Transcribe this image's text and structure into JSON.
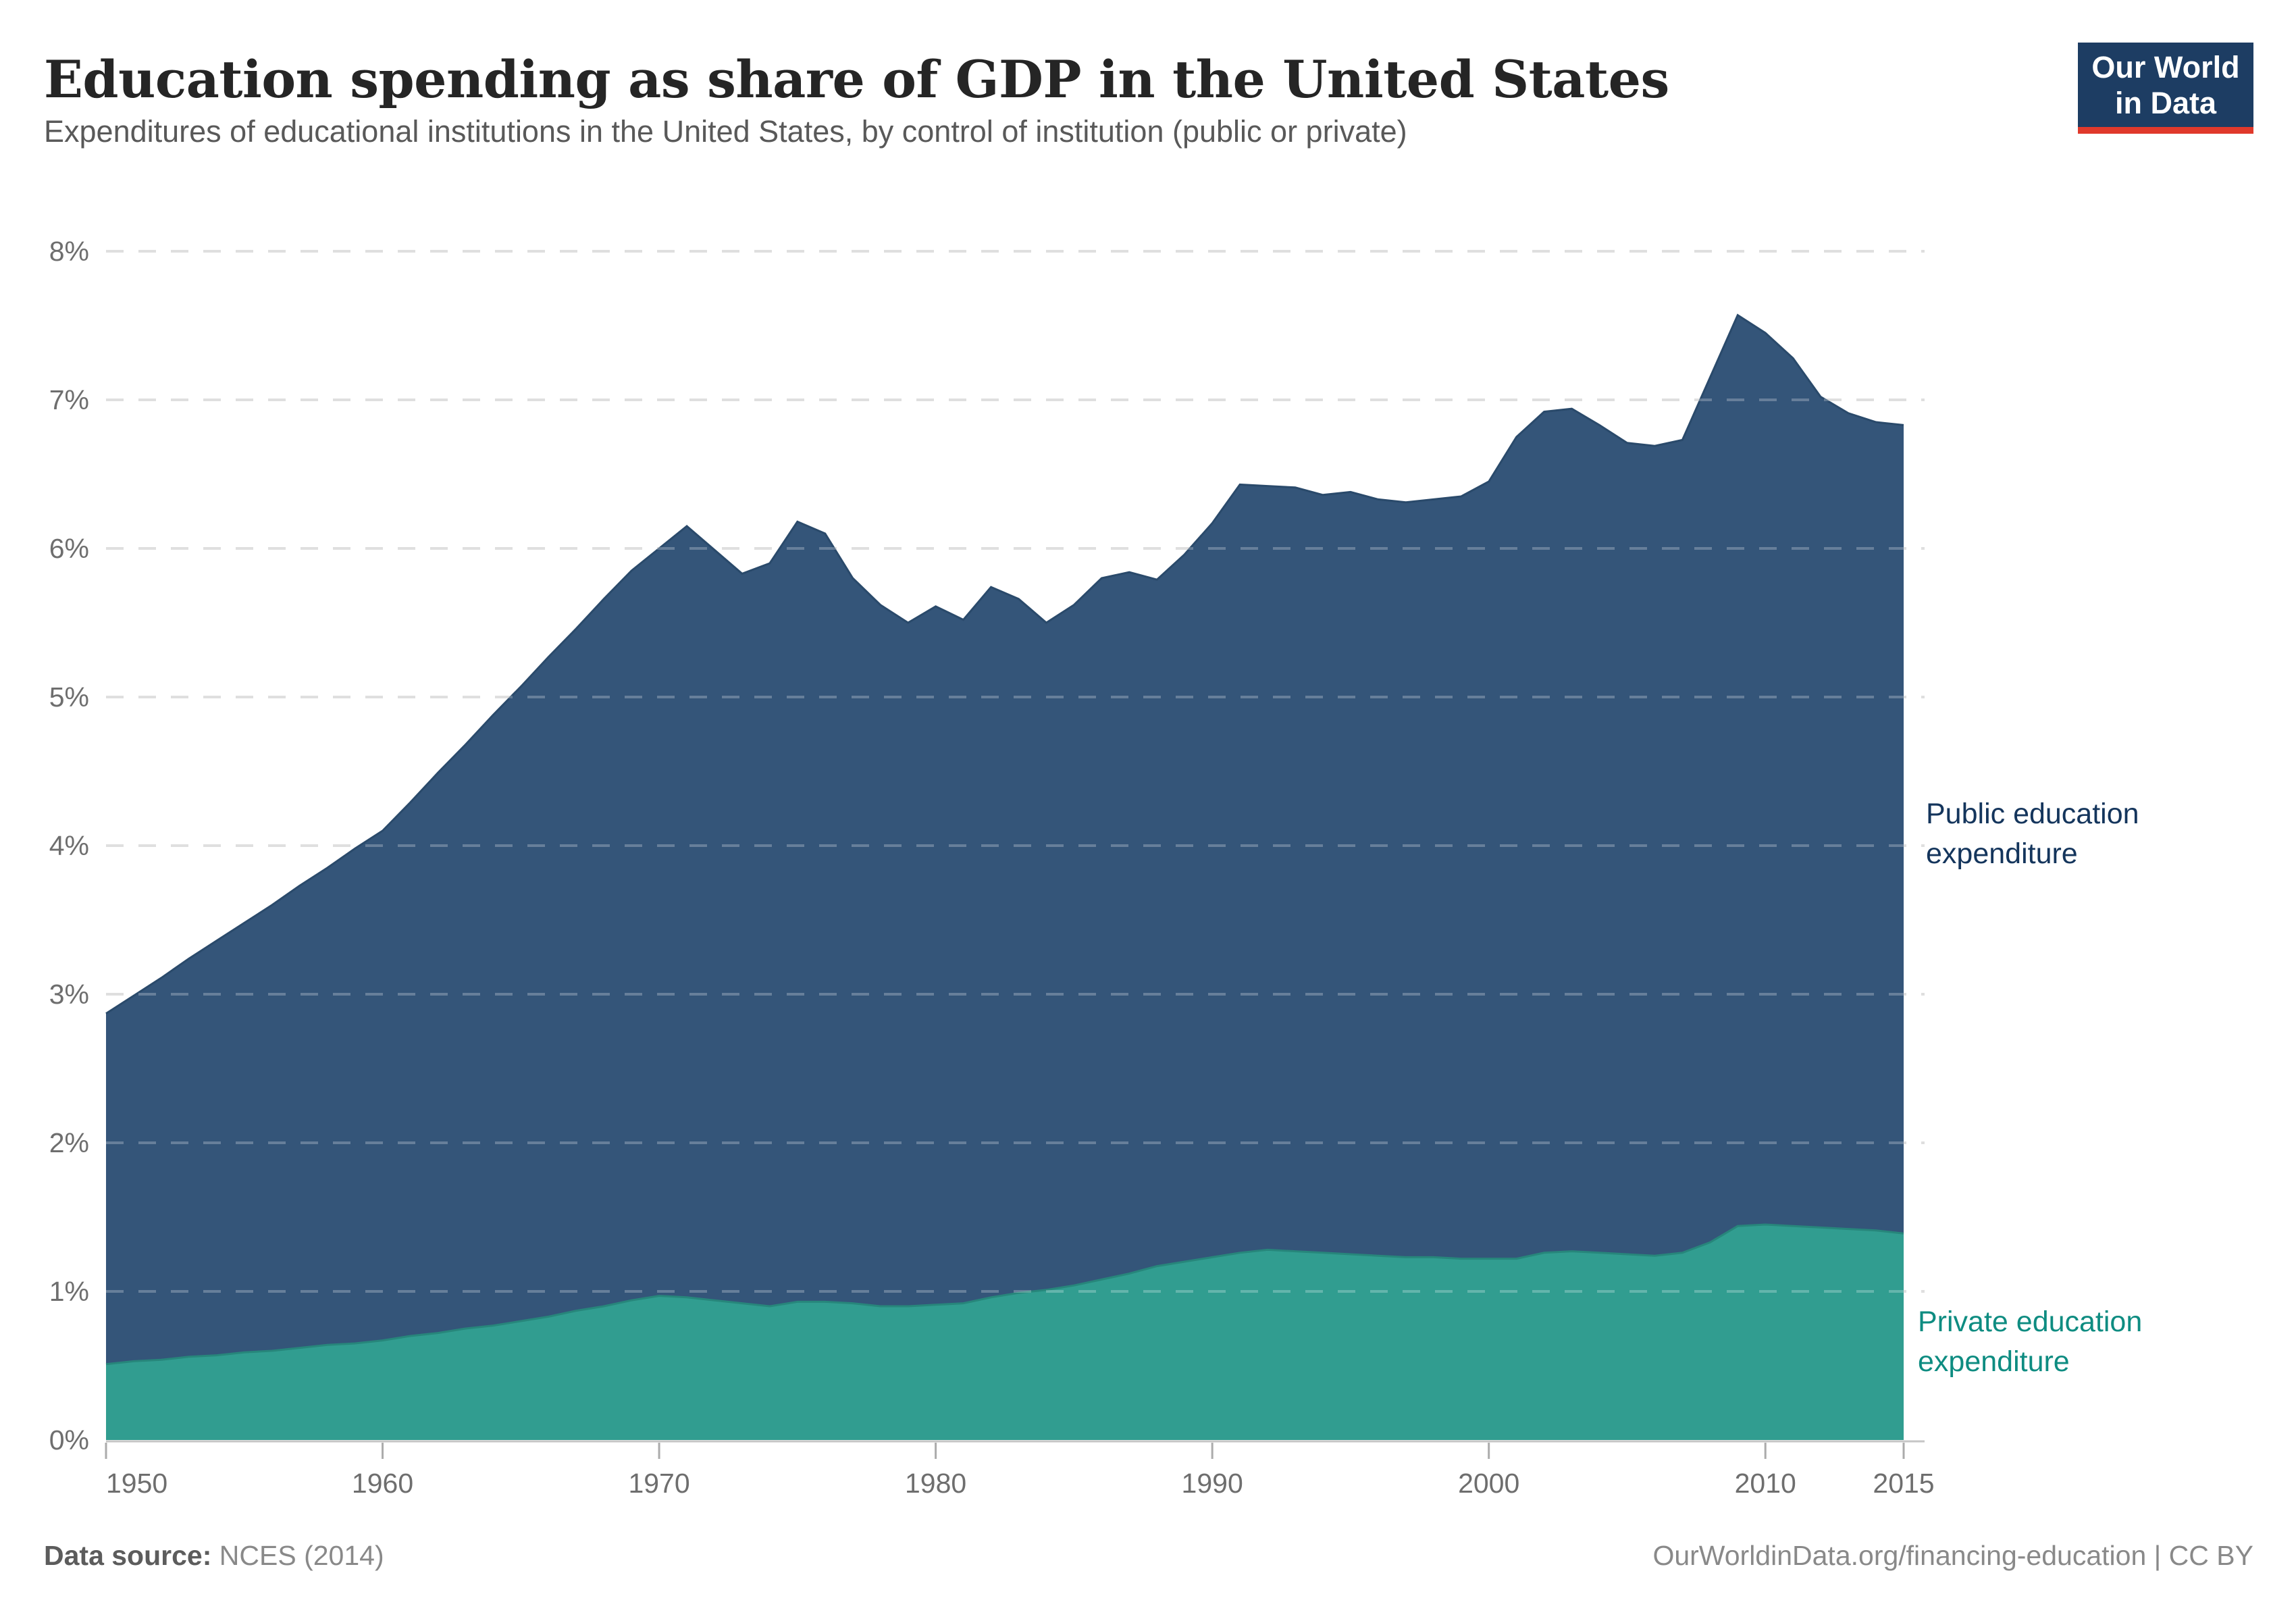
{
  "header": {
    "title": "Education spending as share of GDP in the United States",
    "subtitle": "Expenditures of educational institutions in the United States, by control of institution (public or private)",
    "title_color": "#252525",
    "subtitle_color": "#595959"
  },
  "logo": {
    "line1": "Our World",
    "line2": "in Data",
    "bg_color": "#1d3d63",
    "stripe_color": "#e0392b",
    "text_color": "#ffffff"
  },
  "series_labels": {
    "public": {
      "line1": "Public education",
      "line2": "expenditure",
      "color": "#14355c"
    },
    "private": {
      "line1": "Private education",
      "line2": "expenditure",
      "color": "#0e8c81"
    }
  },
  "footer": {
    "source_label": "Data source:",
    "source_value": "NCES (2014)",
    "right": "OurWorldinData.org/financing-education | CC BY",
    "label_color": "#5c5c5c",
    "text_color": "#898989"
  },
  "chart_data": {
    "type": "area",
    "stacked": true,
    "title": "Education spending as share of GDP in the United States",
    "xlabel": "",
    "ylabel": "",
    "xlim": [
      1950,
      2015
    ],
    "ylim": [
      0,
      8
    ],
    "grid": true,
    "legend_position": "right-edge-annotations",
    "x": [
      1950,
      1951,
      1952,
      1953,
      1954,
      1955,
      1956,
      1957,
      1958,
      1959,
      1960,
      1961,
      1962,
      1963,
      1964,
      1965,
      1966,
      1967,
      1968,
      1969,
      1970,
      1971,
      1972,
      1973,
      1974,
      1975,
      1976,
      1977,
      1978,
      1979,
      1980,
      1981,
      1982,
      1983,
      1984,
      1985,
      1986,
      1987,
      1988,
      1989,
      1990,
      1991,
      1992,
      1993,
      1994,
      1995,
      1996,
      1997,
      1998,
      1999,
      2000,
      2001,
      2002,
      2003,
      2004,
      2005,
      2006,
      2007,
      2008,
      2009,
      2010,
      2011,
      2012,
      2013,
      2014,
      2015
    ],
    "series": [
      {
        "name": "Private education expenditure",
        "unit": "% of GDP",
        "color": "#319d90",
        "line_color": "#27867b",
        "values": [
          0.51,
          0.53,
          0.54,
          0.56,
          0.57,
          0.59,
          0.6,
          0.62,
          0.64,
          0.65,
          0.67,
          0.7,
          0.72,
          0.75,
          0.77,
          0.8,
          0.83,
          0.87,
          0.9,
          0.94,
          0.97,
          0.96,
          0.94,
          0.92,
          0.9,
          0.93,
          0.93,
          0.92,
          0.9,
          0.9,
          0.91,
          0.92,
          0.96,
          0.99,
          1.01,
          1.04,
          1.08,
          1.12,
          1.17,
          1.2,
          1.23,
          1.26,
          1.28,
          1.27,
          1.26,
          1.25,
          1.24,
          1.23,
          1.23,
          1.22,
          1.22,
          1.22,
          1.26,
          1.27,
          1.26,
          1.25,
          1.24,
          1.26,
          1.33,
          1.44,
          1.45,
          1.44,
          1.43,
          1.42,
          1.41,
          1.39
        ]
      },
      {
        "name": "Public education expenditure",
        "unit": "% of GDP",
        "color": "#345579",
        "line_color": "#2a4a6b",
        "values": [
          2.36,
          2.46,
          2.57,
          2.68,
          2.79,
          2.89,
          3.0,
          3.11,
          3.21,
          3.33,
          3.43,
          3.59,
          3.77,
          3.93,
          4.11,
          4.27,
          4.44,
          4.59,
          4.76,
          4.91,
          5.03,
          5.19,
          5.05,
          4.91,
          5.0,
          5.25,
          5.17,
          4.88,
          4.72,
          4.6,
          4.7,
          4.6,
          4.78,
          4.67,
          4.49,
          4.58,
          4.72,
          4.72,
          4.62,
          4.76,
          4.94,
          5.17,
          5.14,
          5.14,
          5.1,
          5.13,
          5.09,
          5.08,
          5.1,
          5.13,
          5.23,
          5.53,
          5.66,
          5.67,
          5.57,
          5.46,
          5.45,
          5.47,
          5.82,
          6.13,
          6.0,
          5.84,
          5.59,
          5.49,
          5.44,
          5.44
        ]
      }
    ],
    "y_ticks": [
      0,
      1,
      2,
      3,
      4,
      5,
      6,
      7,
      8
    ],
    "y_tick_labels": [
      "0%",
      "1%",
      "2%",
      "3%",
      "4%",
      "5%",
      "6%",
      "7%",
      "8%"
    ],
    "x_ticks": [
      1950,
      1960,
      1970,
      1980,
      1990,
      2000,
      2010,
      2015
    ],
    "x_tick_labels": [
      "1950",
      "1960",
      "1970",
      "1980",
      "1990",
      "2000",
      "2010",
      "2015"
    ],
    "colors": {
      "grid_under": "#d4d4d4",
      "grid_over": "rgba(255,255,255,0.25)",
      "axis_line": "#c6c6c6",
      "tick_mark": "#ababab",
      "tick_text": "#6e6e6e"
    }
  }
}
